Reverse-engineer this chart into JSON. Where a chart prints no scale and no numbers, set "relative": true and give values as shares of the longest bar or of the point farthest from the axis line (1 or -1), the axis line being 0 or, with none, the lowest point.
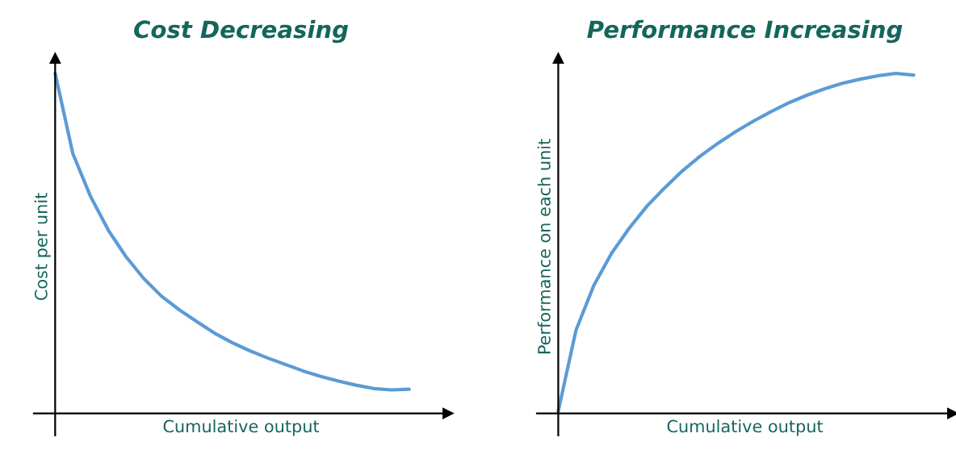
{
  "chart_data": [
    {
      "type": "line",
      "title": "Cost Decreasing",
      "xlabel": "Cumulative output",
      "ylabel": "Cost per unit",
      "relative": true,
      "categories": [
        null,
        null,
        null,
        null,
        null,
        null,
        null,
        null,
        null,
        null,
        null,
        null,
        null,
        null,
        null,
        null,
        null,
        null,
        null,
        null,
        null
      ],
      "series": [
        {
          "color": "#5b9bd5",
          "values": [
            1.0,
            0.764,
            0.638,
            0.539,
            0.461,
            0.397,
            0.345,
            0.305,
            0.27,
            0.236,
            0.208,
            0.184,
            0.163,
            0.144,
            0.125,
            0.109,
            0.095,
            0.083,
            0.073,
            0.069,
            0.071
          ]
        }
      ]
    },
    {
      "type": "line",
      "title": "Performance Increasing",
      "xlabel": "Cumulative output",
      "ylabel": "Performance on each unit",
      "relative": true,
      "categories": [
        null,
        null,
        null,
        null,
        null,
        null,
        null,
        null,
        null,
        null,
        null,
        null,
        null,
        null,
        null,
        null,
        null,
        null,
        null,
        null,
        null
      ],
      "series": [
        {
          "color": "#5b9bd5",
          "values": [
            0.007,
            0.245,
            0.376,
            0.471,
            0.545,
            0.61,
            0.664,
            0.714,
            0.757,
            0.795,
            0.829,
            0.86,
            0.888,
            0.914,
            0.936,
            0.955,
            0.971,
            0.983,
            0.993,
            1.0,
            0.995
          ]
        }
      ]
    }
  ]
}
